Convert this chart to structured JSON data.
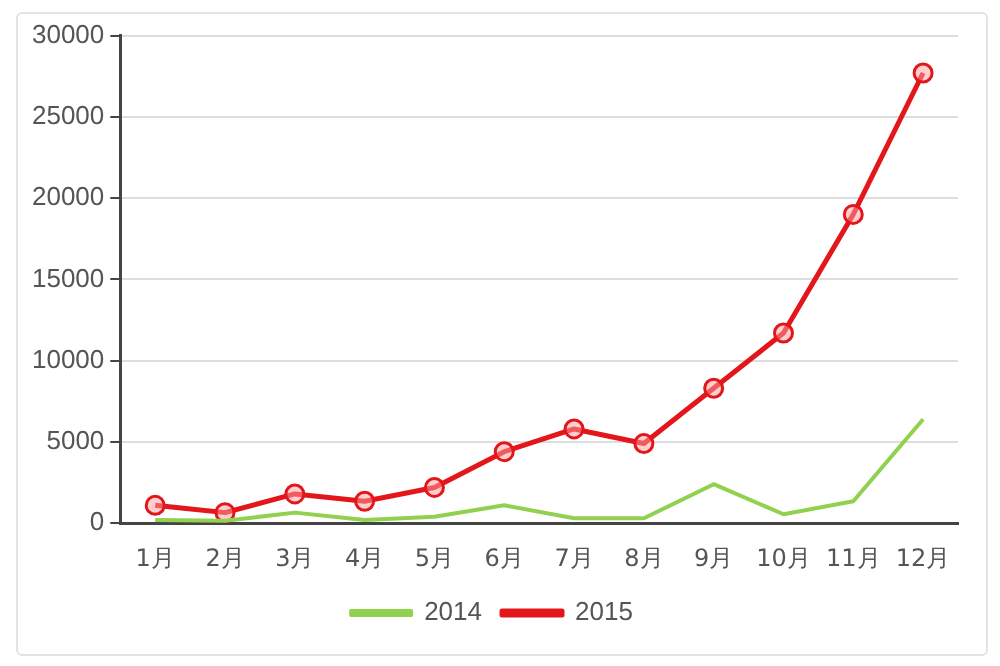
{
  "chart_data": {
    "type": "line",
    "categories": [
      "1月",
      "2月",
      "3月",
      "4月",
      "5月",
      "6月",
      "7月",
      "8月",
      "9月",
      "10月",
      "11月",
      "12月"
    ],
    "series": [
      {
        "name": "2014",
        "color": "#92d050",
        "marker": "none",
        "values": [
          200,
          150,
          650,
          200,
          400,
          1100,
          300,
          300,
          2400,
          550,
          1350,
          6400
        ]
      },
      {
        "name": "2015",
        "color": "#e3161b",
        "marker": "circle",
        "values": [
          1100,
          650,
          1800,
          1350,
          2200,
          4400,
          5800,
          4900,
          8300,
          11700,
          19000,
          27700
        ]
      }
    ],
    "ylim": [
      0,
      30000
    ],
    "yticks": [
      0,
      5000,
      10000,
      15000,
      20000,
      25000,
      30000
    ],
    "grid": "y",
    "legend": "bottom"
  }
}
